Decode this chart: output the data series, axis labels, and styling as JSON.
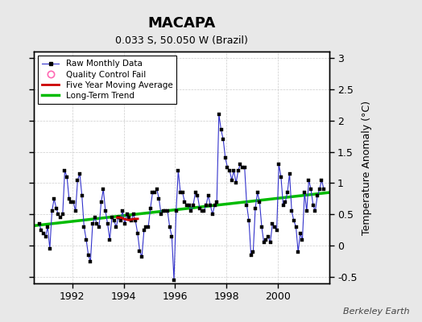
{
  "title": "MACAPA",
  "subtitle": "0.033 S, 50.050 W (Brazil)",
  "ylabel": "Temperature Anomaly (°C)",
  "watermark": "Berkeley Earth",
  "background_color": "#e8e8e8",
  "plot_bg_color": "#ffffff",
  "ylim": [
    -0.6,
    3.1
  ],
  "yticks": [
    -0.5,
    0,
    0.5,
    1,
    1.5,
    2,
    2.5,
    3
  ],
  "xlim_start": 1990.5,
  "xlim_end": 2002.0,
  "xticks": [
    1992,
    1994,
    1996,
    1998,
    2000
  ],
  "raw_x": [
    1990.708,
    1990.792,
    1990.875,
    1990.958,
    1991.042,
    1991.125,
    1991.208,
    1991.292,
    1991.375,
    1991.458,
    1991.542,
    1991.625,
    1991.708,
    1991.792,
    1991.875,
    1991.958,
    1992.042,
    1992.125,
    1992.208,
    1992.292,
    1992.375,
    1992.458,
    1992.542,
    1992.625,
    1992.708,
    1992.792,
    1992.875,
    1992.958,
    1993.042,
    1993.125,
    1993.208,
    1993.292,
    1993.375,
    1993.458,
    1993.542,
    1993.625,
    1993.708,
    1993.792,
    1993.875,
    1993.958,
    1994.042,
    1994.125,
    1994.208,
    1994.292,
    1994.375,
    1994.458,
    1994.542,
    1994.625,
    1994.708,
    1994.792,
    1994.875,
    1994.958,
    1995.042,
    1995.125,
    1995.208,
    1995.292,
    1995.375,
    1995.458,
    1995.542,
    1995.625,
    1995.708,
    1995.792,
    1995.875,
    1995.958,
    1996.042,
    1996.125,
    1996.208,
    1996.292,
    1996.375,
    1996.458,
    1996.542,
    1996.625,
    1996.708,
    1996.792,
    1996.875,
    1996.958,
    1997.042,
    1997.125,
    1997.208,
    1997.292,
    1997.375,
    1997.458,
    1997.542,
    1997.625,
    1997.708,
    1997.792,
    1997.875,
    1997.958,
    1998.042,
    1998.125,
    1998.208,
    1998.292,
    1998.375,
    1998.458,
    1998.542,
    1998.625,
    1998.708,
    1998.792,
    1998.875,
    1998.958,
    1999.042,
    1999.125,
    1999.208,
    1999.292,
    1999.375,
    1999.458,
    1999.542,
    1999.625,
    1999.708,
    1999.792,
    1999.875,
    1999.958,
    2000.042,
    2000.125,
    2000.208,
    2000.292,
    2000.375,
    2000.458,
    2000.542,
    2000.625,
    2000.708,
    2000.792,
    2000.875,
    2000.958,
    2001.042,
    2001.125,
    2001.208,
    2001.292,
    2001.375,
    2001.458,
    2001.542,
    2001.625,
    2001.708,
    2001.792
  ],
  "raw_y": [
    0.35,
    0.25,
    0.2,
    0.15,
    0.3,
    -0.05,
    0.55,
    0.75,
    0.6,
    0.5,
    0.45,
    0.5,
    1.2,
    1.1,
    0.75,
    0.7,
    0.7,
    0.55,
    1.05,
    1.15,
    0.8,
    0.3,
    0.1,
    -0.15,
    -0.25,
    0.35,
    0.45,
    0.35,
    0.3,
    0.7,
    0.9,
    0.55,
    0.35,
    0.1,
    0.45,
    0.4,
    0.3,
    0.45,
    0.4,
    0.55,
    0.35,
    0.5,
    0.45,
    0.4,
    0.5,
    0.4,
    0.2,
    -0.08,
    -0.18,
    0.25,
    0.3,
    0.3,
    0.6,
    0.85,
    0.85,
    0.9,
    0.75,
    0.5,
    0.55,
    0.55,
    0.55,
    0.3,
    0.15,
    -0.55,
    0.55,
    1.2,
    0.85,
    0.85,
    0.7,
    0.65,
    0.65,
    0.55,
    0.65,
    0.85,
    0.8,
    0.6,
    0.55,
    0.55,
    0.65,
    0.8,
    0.65,
    0.5,
    0.65,
    0.7,
    2.1,
    1.85,
    1.7,
    1.4,
    1.25,
    1.2,
    1.05,
    1.2,
    1.0,
    1.2,
    1.3,
    1.25,
    1.25,
    0.65,
    0.4,
    -0.15,
    -0.1,
    0.6,
    0.85,
    0.7,
    0.3,
    0.05,
    0.1,
    0.15,
    0.05,
    0.35,
    0.3,
    0.25,
    1.3,
    1.1,
    0.65,
    0.7,
    0.85,
    1.15,
    0.55,
    0.4,
    0.3,
    -0.1,
    0.2,
    0.1,
    0.85,
    0.55,
    1.05,
    0.9,
    0.65,
    0.55,
    0.8,
    0.9,
    1.05,
    0.9
  ],
  "five_yr_x": [
    1993.75,
    1993.9,
    1994.0,
    1994.1,
    1994.2,
    1994.3,
    1994.4,
    1994.5,
    1994.55
  ],
  "five_yr_y": [
    0.45,
    0.45,
    0.43,
    0.42,
    0.41,
    0.42,
    0.43,
    0.43,
    0.43
  ],
  "trend_x": [
    1990.5,
    2002.0
  ],
  "trend_y": [
    0.32,
    0.85
  ],
  "raw_color": "#3333cc",
  "marker_color": "#000000",
  "five_yr_color": "#cc0000",
  "trend_color": "#00bb00",
  "qc_fail_x": [],
  "qc_fail_y": [],
  "legend_raw_label": "Raw Monthly Data",
  "legend_qc_label": "Quality Control Fail",
  "legend_fiveyr_label": "Five Year Moving Average",
  "legend_trend_label": "Long-Term Trend"
}
